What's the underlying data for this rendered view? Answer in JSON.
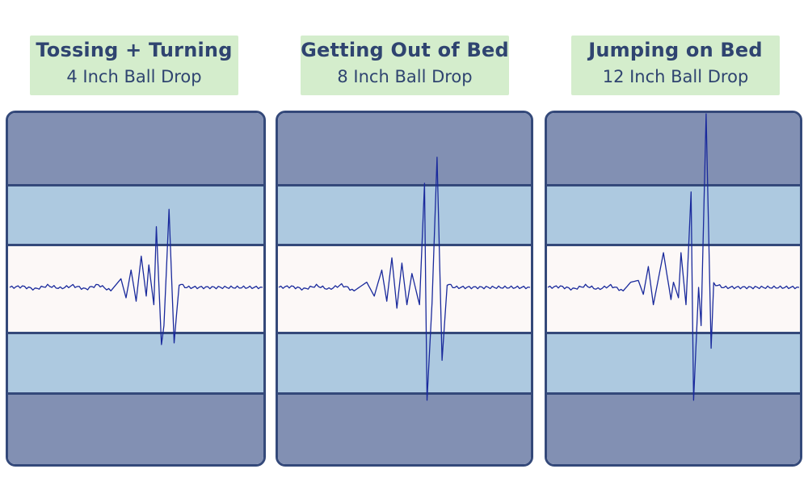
{
  "chart_data": [
    {
      "type": "line",
      "title": "Tossing + Turning",
      "subtitle": "4 Inch Ball Drop",
      "xlabel": "",
      "ylabel": "",
      "grid": false,
      "bands": [
        "outer",
        "mid",
        "center",
        "mid",
        "outer"
      ],
      "description": "Vibration waveform: small ripples, growing oscillations, peak amplitude reaching into upper light-blue band and lower light-blue band",
      "peak_amplitude_relative": 0.45,
      "waveform_points": [
        [
          0,
          0
        ],
        [
          0.05,
          0.005
        ],
        [
          0.1,
          -0.01
        ],
        [
          0.15,
          0.01
        ],
        [
          0.2,
          -0.005
        ],
        [
          0.25,
          0.01
        ],
        [
          0.3,
          -0.01
        ],
        [
          0.35,
          0.015
        ],
        [
          0.4,
          -0.02
        ],
        [
          0.44,
          0.05
        ],
        [
          0.46,
          -0.06
        ],
        [
          0.48,
          0.1
        ],
        [
          0.5,
          -0.08
        ],
        [
          0.52,
          0.18
        ],
        [
          0.54,
          -0.05
        ],
        [
          0.55,
          0.13
        ],
        [
          0.57,
          -0.1
        ],
        [
          0.58,
          0.35
        ],
        [
          0.6,
          -0.33
        ],
        [
          0.61,
          -0.22
        ],
        [
          0.63,
          0.45
        ],
        [
          0.65,
          -0.32
        ],
        [
          0.67,
          0.02
        ],
        [
          0.7,
          0
        ],
        [
          1.0,
          0
        ]
      ]
    },
    {
      "type": "line",
      "title": "Getting Out of Bed",
      "subtitle": "8 Inch Ball Drop",
      "xlabel": "",
      "ylabel": "",
      "grid": false,
      "bands": [
        "outer",
        "mid",
        "center",
        "mid",
        "outer"
      ],
      "description": "Vibration waveform with larger spike reaching into top dark band and bottom dark band",
      "peak_amplitude_relative": 0.75,
      "waveform_points": [
        [
          0,
          0
        ],
        [
          0.05,
          0.005
        ],
        [
          0.1,
          -0.01
        ],
        [
          0.15,
          0.01
        ],
        [
          0.2,
          -0.01
        ],
        [
          0.25,
          0.015
        ],
        [
          0.3,
          -0.02
        ],
        [
          0.35,
          0.03
        ],
        [
          0.38,
          -0.05
        ],
        [
          0.41,
          0.1
        ],
        [
          0.43,
          -0.08
        ],
        [
          0.45,
          0.17
        ],
        [
          0.47,
          -0.12
        ],
        [
          0.49,
          0.14
        ],
        [
          0.51,
          -0.1
        ],
        [
          0.53,
          0.08
        ],
        [
          0.56,
          -0.1
        ],
        [
          0.58,
          0.6
        ],
        [
          0.59,
          -0.65
        ],
        [
          0.61,
          -0.09
        ],
        [
          0.63,
          0.75
        ],
        [
          0.65,
          -0.42
        ],
        [
          0.67,
          0.02
        ],
        [
          0.7,
          0
        ],
        [
          1.0,
          0
        ]
      ]
    },
    {
      "type": "line",
      "title": "Jumping on Bed",
      "subtitle": "12 Inch Ball Drop",
      "xlabel": "",
      "ylabel": "",
      "grid": false,
      "bands": [
        "outer",
        "mid",
        "center",
        "mid",
        "outer"
      ],
      "description": "Vibration waveform with tallest spike extending beyond panel top and deep into bottom dark band",
      "peak_amplitude_relative": 1.0,
      "waveform_points": [
        [
          0,
          0
        ],
        [
          0.05,
          0.005
        ],
        [
          0.1,
          -0.01
        ],
        [
          0.15,
          0.01
        ],
        [
          0.2,
          -0.01
        ],
        [
          0.25,
          0.01
        ],
        [
          0.3,
          -0.02
        ],
        [
          0.33,
          0.03
        ],
        [
          0.36,
          0.04
        ],
        [
          0.38,
          -0.04
        ],
        [
          0.4,
          0.12
        ],
        [
          0.42,
          -0.1
        ],
        [
          0.46,
          0.2
        ],
        [
          0.49,
          -0.07
        ],
        [
          0.5,
          0.03
        ],
        [
          0.52,
          -0.06
        ],
        [
          0.53,
          0.2
        ],
        [
          0.55,
          -0.1
        ],
        [
          0.57,
          0.55
        ],
        [
          0.58,
          -0.65
        ],
        [
          0.6,
          0.0
        ],
        [
          0.61,
          -0.22
        ],
        [
          0.63,
          1.0
        ],
        [
          0.65,
          -0.35
        ],
        [
          0.66,
          0.02
        ],
        [
          0.7,
          0
        ],
        [
          1.0,
          0
        ]
      ]
    }
  ],
  "panels": [
    {
      "title": "Tossing + Turning",
      "subtitle": "4 Inch Ball Drop"
    },
    {
      "title": "Getting Out of Bed",
      "subtitle": "8 Inch Ball Drop"
    },
    {
      "title": "Jumping on Bed",
      "subtitle": "12 Inch Ball Drop"
    }
  ],
  "colors": {
    "label_bg": "#d4edcc",
    "label_text": "#2f4470",
    "outer_band": "#8290b3",
    "mid_band": "#adc9e0",
    "center_band": "#fcf8f7",
    "border": "#34497a",
    "wave": "#1a2a9c"
  }
}
